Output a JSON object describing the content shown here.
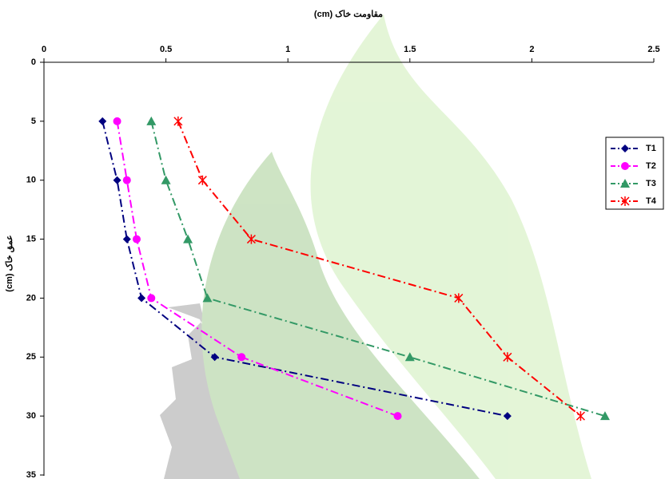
{
  "chart_data": {
    "type": "line",
    "x_label": "مقاومت خاک (cm)",
    "y_label": "عمق خاک (cm)",
    "y": [
      5,
      10,
      15,
      20,
      25,
      30
    ],
    "series": [
      {
        "name": "T1",
        "color": "#000080",
        "marker": "diamond",
        "values": [
          0.24,
          0.3,
          0.34,
          0.4,
          0.7,
          1.9
        ]
      },
      {
        "name": "T2",
        "color": "#ff00ff",
        "marker": "circle",
        "values": [
          0.3,
          0.34,
          0.38,
          0.44,
          0.81,
          1.45
        ]
      },
      {
        "name": "T3",
        "color": "#339966",
        "marker": "triangle",
        "values": [
          0.44,
          0.5,
          0.59,
          0.67,
          1.5,
          2.3
        ]
      },
      {
        "name": "T4",
        "color": "#ff0000",
        "marker": "star",
        "values": [
          0.55,
          0.65,
          0.85,
          1.7,
          1.9,
          2.2
        ]
      }
    ],
    "xlim": [
      0,
      2.5
    ],
    "xticks": [
      0,
      0.5,
      1,
      1.5,
      2,
      2.5
    ],
    "ylim": [
      0,
      35
    ],
    "yticks": [
      0,
      5,
      10,
      15,
      20,
      25,
      30,
      35
    ],
    "y_inverted": true,
    "x_axis_position": "top",
    "legend": "right"
  }
}
